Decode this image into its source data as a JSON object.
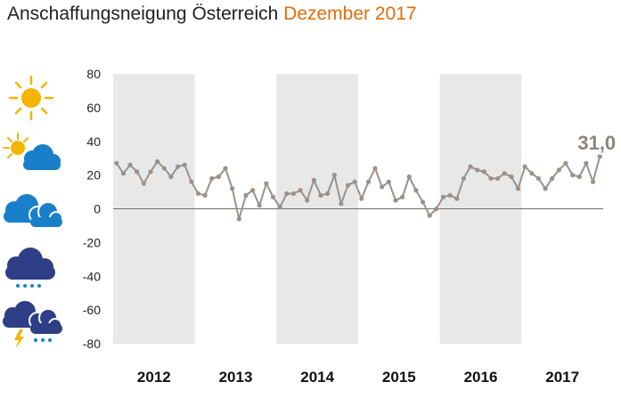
{
  "title": {
    "main": "Anschaffungsneigung Österreich",
    "accent": "Dezember 2017",
    "accent_color": "#e36c0a"
  },
  "weather_icons": [
    "sun-icon",
    "sun-behind-cloud-icon",
    "cloud-icon",
    "rain-cloud-icon",
    "thunderstorm-icon"
  ],
  "chart_data": {
    "type": "line",
    "title": "Anschaffungsneigung Österreich",
    "ylim": [
      -80,
      80
    ],
    "yticks": [
      "80",
      "60",
      "40",
      "20",
      "0",
      "-20",
      "-40",
      "-60",
      "-80"
    ],
    "year_labels": [
      "2012",
      "2013",
      "2014",
      "2015",
      "2016",
      "2017"
    ],
    "shaded_years": [
      "2012",
      "2014",
      "2016"
    ],
    "shade_color": "#e8e8e8",
    "line_color": "#9a918c",
    "end_label": "31,0",
    "series": [
      {
        "values": [
          27,
          21,
          26,
          22,
          15,
          22,
          28,
          24,
          19,
          25,
          26,
          16,
          9,
          8,
          18,
          19,
          24,
          12,
          -6,
          8,
          11,
          2,
          15,
          7,
          1,
          9,
          9,
          11,
          5,
          17,
          8,
          9,
          20,
          3,
          14,
          16,
          6,
          16,
          24,
          13,
          16,
          5,
          7,
          19,
          11,
          4,
          -4,
          0,
          7,
          8,
          6,
          18,
          25,
          23,
          22,
          18,
          18,
          21,
          19,
          12,
          25,
          21,
          18,
          12,
          18,
          23,
          27,
          20,
          19,
          27,
          16,
          31
        ]
      }
    ]
  }
}
